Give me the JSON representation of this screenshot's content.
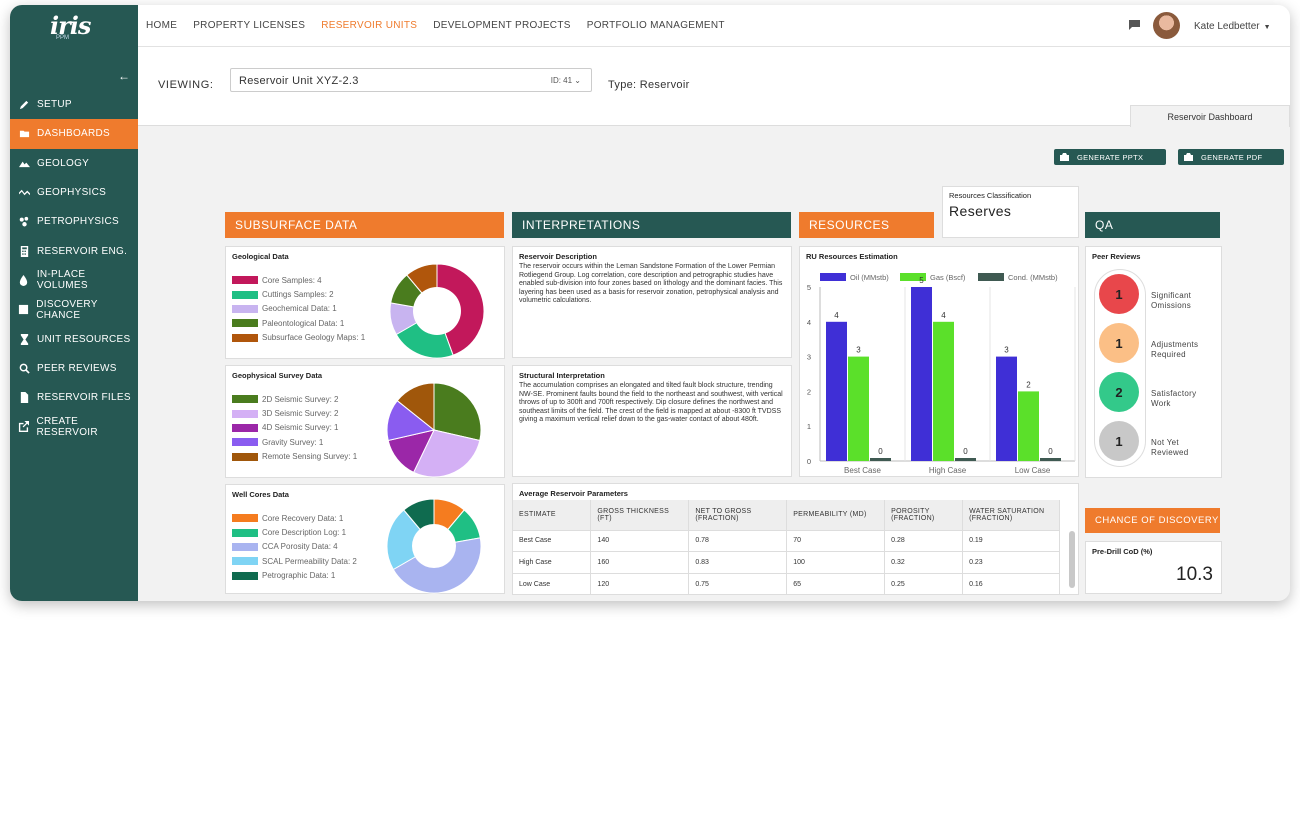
{
  "app": {
    "logo": "iris",
    "logo_sub": "PPM"
  },
  "sidebar": {
    "items": [
      {
        "label": "SETUP",
        "icon": "pencil-icon"
      },
      {
        "label": "DASHBOARDS",
        "icon": "folder-icon",
        "active": true
      },
      {
        "label": "GEOLOGY",
        "icon": "mountain-icon"
      },
      {
        "label": "GEOPHYSICS",
        "icon": "wave-icon"
      },
      {
        "label": "PETROPHYSICS",
        "icon": "molecule-icon"
      },
      {
        "label": "RESERVOIR ENG.",
        "icon": "calculator-icon"
      },
      {
        "label": "IN-PLACE VOLUMES",
        "icon": "drop-icon"
      },
      {
        "label": "DISCOVERY CHANCE",
        "icon": "dice-icon"
      },
      {
        "label": "UNIT RESOURCES",
        "icon": "hourglass-icon"
      },
      {
        "label": "PEER REVIEWS",
        "icon": "magnifier-icon"
      },
      {
        "label": "RESERVOIR FILES",
        "icon": "file-icon"
      },
      {
        "label": "CREATE RESERVOIR",
        "icon": "export-icon"
      }
    ]
  },
  "topnav": {
    "items": [
      "HOME",
      "PROPERTY LICENSES",
      "RESERVOIR UNITS",
      "DEVELOPMENT PROJECTS",
      "PORTFOLIO MANAGEMENT"
    ],
    "active": "RESERVOIR UNITS",
    "user": "Kate Ledbetter"
  },
  "viewing": {
    "label": "VIEWING:",
    "unit": "Reservoir Unit XYZ-2.3",
    "id": "ID: 41",
    "type": "Type: Reservoir",
    "tab": "Reservoir Dashboard"
  },
  "buttons": {
    "pptx": "GENERATE PPTX",
    "pdf": "GENERATE PDF"
  },
  "sections": {
    "subsurface": "SUBSURFACE DATA",
    "interpretations": "INTERPRETATIONS",
    "resources": "RESOURCES",
    "qa": "QA",
    "cod": "CHANCE OF DISCOVERY"
  },
  "resources_classification": {
    "title": "Resources Classification",
    "value": "Reserves"
  },
  "geological": {
    "title": "Geological Data",
    "items": [
      {
        "label": "Core Samples: 4",
        "value": 4,
        "color": "#c2185b"
      },
      {
        "label": "Cuttings Samples: 2",
        "value": 2,
        "color": "#1fbf84"
      },
      {
        "label": "Geochemical Data: 1",
        "value": 1,
        "color": "#c8b4f0"
      },
      {
        "label": "Paleontological Data: 1",
        "value": 1,
        "color": "#4a7c1e"
      },
      {
        "label": "Subsurface Geology Maps: 1",
        "value": 1,
        "color": "#b0560c"
      }
    ]
  },
  "geophysical": {
    "title": "Geophysical Survey Data",
    "items": [
      {
        "label": "2D Seismic Survey: 2",
        "value": 2,
        "color": "#4a7c1e"
      },
      {
        "label": "3D Seismic Survey: 2",
        "value": 2,
        "color": "#d4b0f5"
      },
      {
        "label": "4D Seismic Survey: 1",
        "value": 1,
        "color": "#9b27a8"
      },
      {
        "label": "Gravity Survey: 1",
        "value": 1,
        "color": "#8a5cf0"
      },
      {
        "label": "Remote Sensing Survey: 1",
        "value": 1,
        "color": "#a0570b"
      }
    ]
  },
  "wellcores": {
    "title": "Well Cores Data",
    "items": [
      {
        "label": "Core Recovery Data: 1",
        "value": 1,
        "color": "#f57c1f"
      },
      {
        "label": "Core Description Log: 1",
        "value": 1,
        "color": "#1fbf84"
      },
      {
        "label": "CCA Porosity Data: 4",
        "value": 4,
        "color": "#a9b4f0"
      },
      {
        "label": "SCAL Permeability Data: 2",
        "value": 2,
        "color": "#7fd4f4"
      },
      {
        "label": "Petrographic Data: 1",
        "value": 1,
        "color": "#0f6b4f"
      }
    ]
  },
  "reservoir_description": {
    "title": "Reservoir Description",
    "text": "The reservoir occurs within the Leman Sandstone Formation of the Lower Permian Rotliegend Group. Log correlation, core description and petrographic studies have enabled sub-division into four zones based on lithology and the dominant facies. This layering has been used as a basis for reservoir zonation, petrophysical analysis and volumetric calculations."
  },
  "structural_interpretation": {
    "title": "Structural Interpretation",
    "text": "The accumulation comprises an elongated and tilted fault block structure, trending NW-SE. Prominent faults bound the field to the northeast and southwest, with vertical throws of up to 300ft and 700ft respectively. Dip closure defines the northwest and southeast limits of the field. The crest of the field is mapped at about -8300 ft TVDSS giving a maximum vertical relief down to the gas-water contact of about 480ft."
  },
  "params": {
    "title": "Average Reservoir Parameters",
    "headers": [
      "ESTIMATE",
      "GROSS THICKNESS (FT)",
      "NET TO GROSS (FRACTION)",
      "PERMEABILITY (MD)",
      "POROSITY (FRACTION)",
      "WATER SATURATION (FRACTION)"
    ],
    "rows": [
      [
        "Best Case",
        "140",
        "0.78",
        "70",
        "0.28",
        "0.19"
      ],
      [
        "High Case",
        "160",
        "0.83",
        "100",
        "0.32",
        "0.23"
      ],
      [
        "Low Case",
        "120",
        "0.75",
        "65",
        "0.25",
        "0.16"
      ]
    ]
  },
  "chart_data": {
    "type": "bar",
    "title": "RU Resources Estimation",
    "categories": [
      "Best Case",
      "High Case",
      "Low Case"
    ],
    "series": [
      {
        "name": "Oil (MMstb)",
        "color": "#3f2fd6",
        "values": [
          4,
          5,
          3
        ]
      },
      {
        "name": "Gas (Bscf)",
        "color": "#5be02a",
        "values": [
          3,
          4,
          2
        ]
      },
      {
        "name": "Cond. (MMstb)",
        "color": "#3f5a52",
        "values": [
          0,
          0,
          0
        ]
      }
    ],
    "ylim": [
      0,
      5
    ],
    "yticks": [
      0,
      1,
      2,
      3,
      4,
      5
    ],
    "legend": "top",
    "grid": false
  },
  "qa": {
    "title": "Peer Reviews",
    "items": [
      {
        "count": "1",
        "label1": "Significant",
        "label2": "Omissions",
        "color": "#e8474b"
      },
      {
        "count": "1",
        "label1": "Adjustments",
        "label2": "Required",
        "color": "#fbbf86"
      },
      {
        "count": "2",
        "label1": "Satisfactory",
        "label2": "Work",
        "color": "#33c98a"
      },
      {
        "count": "1",
        "label1": "Not Yet",
        "label2": "Reviewed",
        "color": "#c8c8c8"
      }
    ]
  },
  "cod": {
    "title": "Pre-Drill CoD (%)",
    "value": "10.3"
  }
}
